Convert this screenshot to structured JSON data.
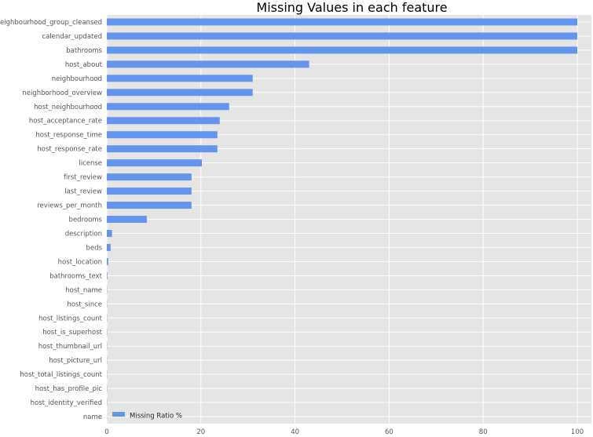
{
  "chart_data": {
    "type": "bar",
    "orientation": "horizontal",
    "title": "Missing Values in each feature",
    "xlabel": "",
    "ylabel": "",
    "xlim": [
      0,
      103
    ],
    "xticks": [
      0,
      20,
      40,
      60,
      80,
      100
    ],
    "grid": true,
    "legend_position": "bottom-left",
    "bar_color": "#6495ED",
    "background_color": "#E5E5E5",
    "categories": [
      "neighbourhood_group_cleansed",
      "calendar_updated",
      "bathrooms",
      "host_about",
      "neighbourhood",
      "neighborhood_overview",
      "host_neighbourhood",
      "host_acceptance_rate",
      "host_response_time",
      "host_response_rate",
      "license",
      "first_review",
      "last_review",
      "reviews_per_month",
      "bedrooms",
      "description",
      "beds",
      "host_location",
      "bathrooms_text",
      "host_name",
      "host_since",
      "host_listings_count",
      "host_is_superhost",
      "host_thumbnail_url",
      "host_picture_url",
      "host_total_listings_count",
      "host_has_profile_pic",
      "host_identity_verified",
      "name"
    ],
    "series": [
      {
        "name": "Missing Ratio %",
        "values": [
          100,
          100,
          100,
          43,
          31,
          31,
          26,
          24,
          23.5,
          23.5,
          20.2,
          18,
          18,
          18,
          8.5,
          1.1,
          0.8,
          0.3,
          0.1,
          0.05,
          0.05,
          0.05,
          0.05,
          0.05,
          0.05,
          0.05,
          0.05,
          0.05,
          0.02
        ]
      }
    ]
  }
}
